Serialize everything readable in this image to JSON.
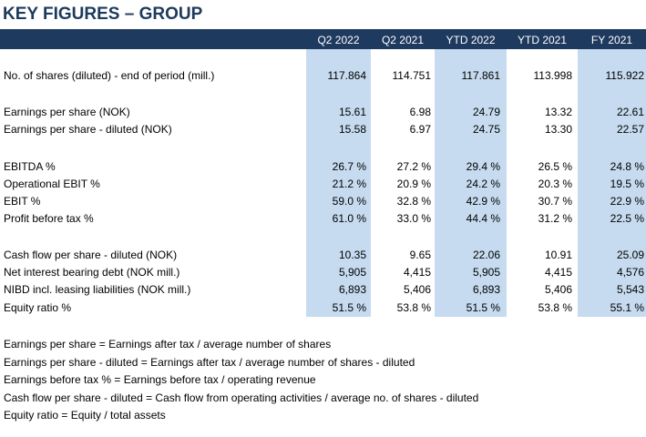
{
  "title": "KEY FIGURES – GROUP",
  "columns": [
    "Q2 2022",
    "Q2 2021",
    "YTD 2022",
    "YTD 2021",
    "FY 2021"
  ],
  "rows": [
    {
      "label": "No. of shares (diluted) - end of period (mill.)",
      "values": [
        "117.864",
        "114.751",
        "117.861",
        "113.998",
        "115.922"
      ]
    },
    {
      "label": "Earnings per share (NOK)",
      "values": [
        "15.61",
        "6.98",
        "24.79",
        "13.32",
        "22.61"
      ]
    },
    {
      "label": "Earnings per share - diluted (NOK)",
      "values": [
        "15.58",
        "6.97",
        "24.75",
        "13.30",
        "22.57"
      ]
    },
    {
      "label": "EBITDA %",
      "values": [
        "26.7 %",
        "27.2 %",
        "29.4 %",
        "26.5 %",
        "24.8 %"
      ]
    },
    {
      "label": "Operational EBIT  %",
      "values": [
        "21.2 %",
        "20.9 %",
        "24.2 %",
        "20.3 %",
        "19.5 %"
      ]
    },
    {
      "label": "EBIT %",
      "values": [
        "59.0 %",
        "32.8 %",
        "42.9 %",
        "30.7 %",
        "22.9 %"
      ]
    },
    {
      "label": "Profit before tax %",
      "values": [
        "61.0 %",
        "33.0 %",
        "44.4 %",
        "31.2 %",
        "22.5 %"
      ]
    },
    {
      "label": "Cash flow per share - diluted (NOK)",
      "values": [
        "10.35",
        "9.65",
        "22.06",
        "10.91",
        "25.09"
      ]
    },
    {
      "label": "Net interest bearing debt (NOK mill.)",
      "values": [
        "5,905",
        "4,415",
        "5,905",
        "4,415",
        "4,576"
      ]
    },
    {
      "label": "NIBD incl. leasing liabilities (NOK mill.)",
      "values": [
        "6,893",
        "5,406",
        "6,893",
        "5,406",
        "5,543"
      ]
    },
    {
      "label": "Equity ratio %",
      "values": [
        "51.5 %",
        "53.8 %",
        "51.5 %",
        "53.8 %",
        "55.1 %"
      ]
    }
  ],
  "notes": [
    "Earnings per share = Earnings after tax / average number of shares",
    "Earnings per share - diluted = Earnings after tax / average number of shares - diluted",
    "Earnings before tax % = Earnings before tax / operating revenue",
    "Cash flow per share - diluted = Cash flow from operating activities / average no. of shares - diluted",
    "Equity ratio = Equity / total assets"
  ],
  "colors": {
    "header_bg": "#1f3a5f",
    "title": "#1d3a5c",
    "highlight": "#c6dbef"
  }
}
